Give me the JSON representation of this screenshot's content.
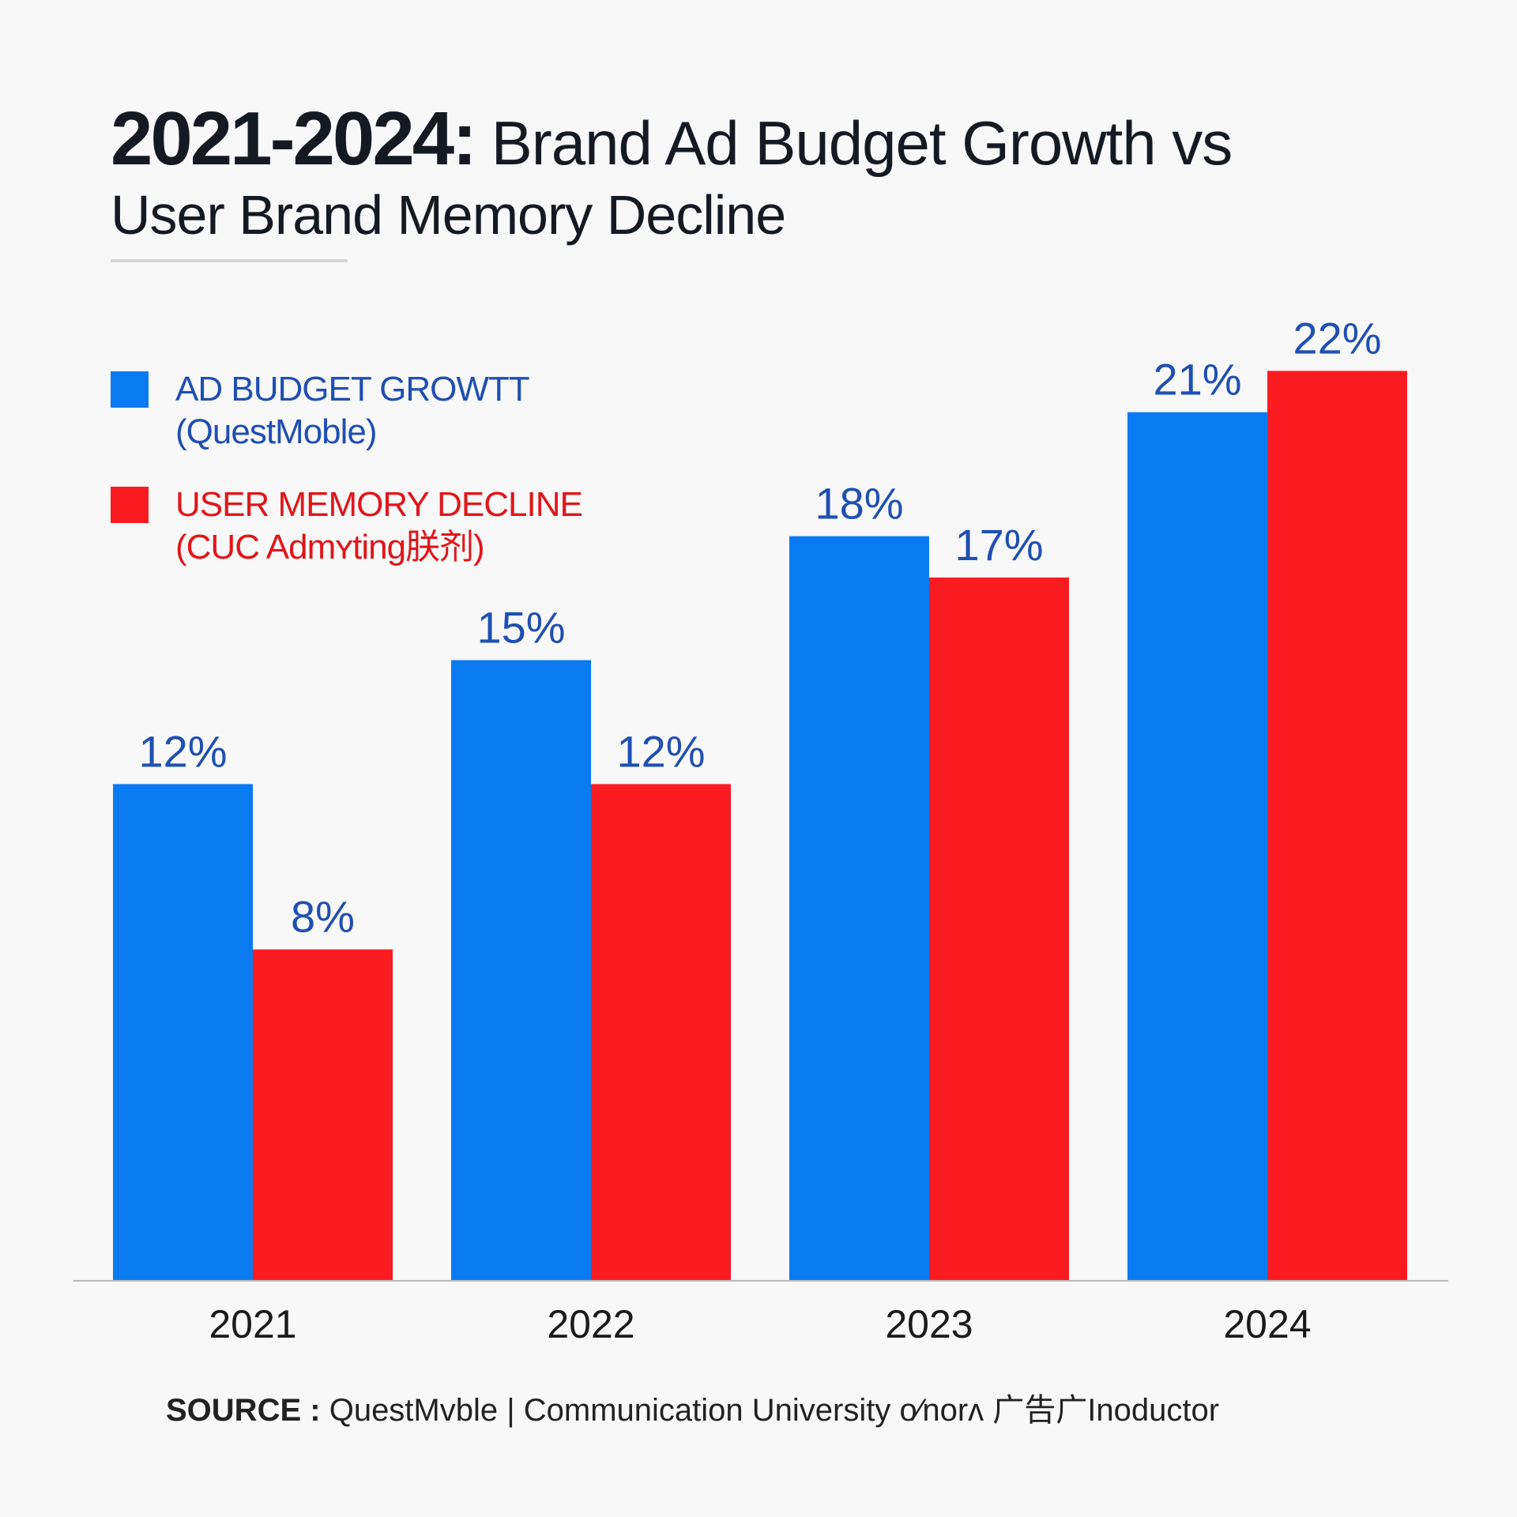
{
  "chart_data": {
    "type": "bar",
    "title_prefix": "2021-2024:",
    "title_rest": "Brand Ad Budget Growth vs",
    "title_line2": "User Brand Memory Decline",
    "categories": [
      "2021",
      "2022",
      "2023",
      "2024"
    ],
    "series": [
      {
        "name": "AD BUDGET GROWTT",
        "source_note": "(QuestMoble)",
        "color": "#0a7af0",
        "label_color": "#1f4fb2",
        "values": [
          12,
          15,
          18,
          21
        ],
        "labels": [
          "12%",
          "15%",
          "18%",
          "21%"
        ]
      },
      {
        "name": "USER MEMORY DECLINE",
        "source_note": "(CUC Admʏting朕剂)",
        "color": "#fb1c22",
        "label_color": "#1f4fb2",
        "values": [
          8,
          12,
          17,
          22
        ],
        "labels": [
          "8%",
          "12%",
          "17%",
          "22%"
        ]
      }
    ],
    "ylim": [
      0,
      22
    ],
    "grid": false,
    "legend_position": "top-left",
    "source_label": "SOURCE :",
    "source_text": "QuestMvble | Communication University o⁄norʌ 广告广Inoductor"
  }
}
